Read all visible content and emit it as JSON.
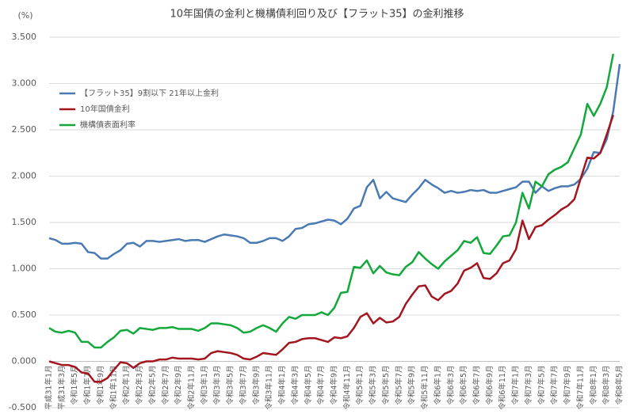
{
  "chart_data": {
    "type": "line",
    "title": "10年国債の金利と機構債利回り及び【フラット35】の金利推移",
    "y_unit": "(%)",
    "categories": [
      "平成31年1月",
      null,
      "平成31年3月",
      null,
      "令和1年5月",
      null,
      "令和1年7月",
      null,
      "令和1年9月",
      null,
      "令和1年11月",
      null,
      "令和2年1月",
      null,
      "令和2年3月",
      null,
      "令和2年5月",
      null,
      "令和2年7月",
      null,
      "令和2年9月",
      null,
      "令和2年11月",
      null,
      "令和3年1月",
      null,
      "令和3年3月",
      null,
      "令和3年5月",
      null,
      "令和3年7月",
      null,
      "令和3年9月",
      null,
      "令和3年11月",
      null,
      "令和4年1月",
      null,
      "令和4年3月",
      null,
      "令和4年5月",
      null,
      "令和4年7月",
      null,
      "令和4年9月",
      null,
      "令和4年11月",
      null,
      "令和5年1月",
      null,
      "令和5年3月",
      null,
      "令和5年5月",
      null,
      "令和5年7月",
      null,
      "令和5年9月",
      null,
      "令和5年11月",
      null,
      "令和6年1月",
      null,
      "令和6年3月",
      null,
      "令和6年5月",
      null,
      "令和6年7月",
      null,
      "令和6年9月",
      null,
      "令和6年11月",
      null,
      "令和7年1月",
      null,
      "令和7年3月",
      null,
      "令和7年5月",
      null,
      "令和7年7月",
      null,
      "令和7年9月",
      null,
      "令和7年11月",
      null,
      "令和8年1月",
      null,
      "令和8年3月",
      null,
      "令和8年5月"
    ],
    "series": [
      {
        "name": "【フラット35】9割以下 21年以上金利",
        "color": "#4a7ab4",
        "values": [
          1.33,
          1.31,
          1.27,
          1.27,
          1.28,
          1.27,
          1.18,
          1.17,
          1.11,
          1.11,
          1.16,
          1.2,
          1.27,
          1.28,
          1.24,
          1.3,
          1.3,
          1.29,
          1.3,
          1.31,
          1.32,
          1.3,
          1.31,
          1.31,
          1.29,
          1.32,
          1.35,
          1.37,
          1.36,
          1.35,
          1.33,
          1.28,
          1.28,
          1.3,
          1.33,
          1.33,
          1.3,
          1.35,
          1.43,
          1.44,
          1.48,
          1.49,
          1.51,
          1.53,
          1.52,
          1.48,
          1.54,
          1.65,
          1.68,
          1.88,
          1.96,
          1.76,
          1.83,
          1.76,
          1.74,
          1.72,
          1.8,
          1.87,
          1.96,
          1.91,
          1.87,
          1.82,
          1.84,
          1.82,
          1.83,
          1.85,
          1.84,
          1.85,
          1.82,
          1.82,
          1.84,
          1.86,
          1.88,
          1.94,
          1.94,
          1.82,
          1.89,
          1.84,
          1.87,
          1.89,
          1.89,
          1.91,
          1.97,
          2.08,
          2.26,
          2.25,
          2.4,
          2.7,
          3.21
        ]
      },
      {
        "name": "10年国債金利",
        "color": "#a3161e",
        "values": [
          0.0,
          -0.02,
          -0.04,
          -0.04,
          -0.06,
          -0.12,
          -0.13,
          -0.22,
          -0.22,
          -0.18,
          -0.09,
          -0.01,
          -0.02,
          -0.07,
          -0.02,
          0.0,
          0.0,
          0.02,
          0.02,
          0.04,
          0.03,
          0.03,
          0.03,
          0.02,
          0.03,
          0.09,
          0.11,
          0.1,
          0.09,
          0.07,
          0.03,
          0.02,
          0.05,
          0.09,
          0.08,
          0.07,
          0.13,
          0.2,
          0.21,
          0.24,
          0.25,
          0.25,
          0.23,
          0.21,
          0.26,
          0.25,
          0.27,
          0.36,
          0.48,
          0.52,
          0.41,
          0.47,
          0.42,
          0.43,
          0.48,
          0.62,
          0.72,
          0.81,
          0.82,
          0.7,
          0.66,
          0.73,
          0.76,
          0.84,
          0.98,
          1.01,
          1.06,
          0.9,
          0.89,
          0.95,
          1.06,
          1.09,
          1.21,
          1.52,
          1.32,
          1.45,
          1.47,
          1.53,
          1.58,
          1.64,
          1.68,
          1.75,
          1.98,
          2.2,
          2.19,
          2.25,
          2.45,
          2.66,
          null
        ]
      },
      {
        "name": "機構債表面利率",
        "color": "#12a83a",
        "values": [
          0.36,
          0.32,
          0.31,
          0.33,
          0.31,
          0.21,
          0.21,
          0.15,
          0.15,
          0.21,
          0.26,
          0.33,
          0.34,
          0.3,
          0.36,
          0.35,
          0.34,
          0.36,
          0.36,
          0.37,
          0.35,
          0.35,
          0.35,
          0.33,
          0.36,
          0.41,
          0.41,
          0.4,
          0.39,
          0.36,
          0.31,
          0.32,
          0.36,
          0.39,
          0.36,
          0.32,
          0.41,
          0.48,
          0.46,
          0.5,
          0.5,
          0.5,
          0.53,
          0.5,
          0.58,
          0.74,
          0.75,
          1.02,
          1.01,
          1.09,
          0.95,
          1.03,
          0.96,
          0.94,
          0.93,
          1.02,
          1.07,
          1.18,
          1.11,
          1.05,
          1.0,
          1.08,
          1.14,
          1.2,
          1.3,
          1.28,
          1.34,
          1.17,
          1.16,
          1.25,
          1.35,
          1.36,
          1.5,
          1.82,
          1.65,
          1.94,
          1.89,
          2.02,
          2.07,
          2.1,
          2.15,
          2.3,
          2.45,
          2.78,
          2.65,
          2.78,
          2.96,
          3.32,
          null
        ]
      }
    ],
    "ylim": [
      -0.5,
      3.5
    ],
    "yticks": [
      {
        "value": -0.5,
        "label": "-0.500"
      },
      {
        "value": 0,
        "label": "0.000"
      },
      {
        "value": 0.5,
        "label": "0.500"
      },
      {
        "value": 1,
        "label": "1.000"
      },
      {
        "value": 1.5,
        "label": "1.500"
      },
      {
        "value": 2,
        "label": "2.000"
      },
      {
        "value": 2.5,
        "label": "2.500"
      },
      {
        "value": 3,
        "label": "3.000"
      },
      {
        "value": 3.5,
        "label": "3.500"
      }
    ],
    "grid": true,
    "legend": "upper-left"
  }
}
